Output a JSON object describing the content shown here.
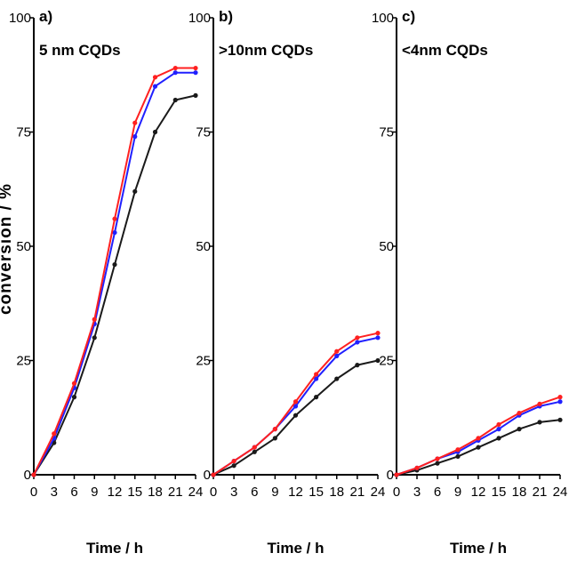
{
  "figure": {
    "ylabel": "conversion / %"
  },
  "series_colors": [
    "#ff2020",
    "#2020ff",
    "#1a1a1a"
  ],
  "chart_data": [
    {
      "type": "line",
      "panel": "a)",
      "title": "5 nm CQDs",
      "xlabel": "Time / h",
      "ylabel": "conversion / %",
      "xlim": [
        0,
        24
      ],
      "ylim": [
        0,
        100
      ],
      "x": [
        0,
        3,
        6,
        9,
        12,
        15,
        18,
        21,
        24
      ],
      "x_ticks": [
        "0",
        "3",
        "6",
        "9",
        "12",
        "15",
        "18",
        "21",
        "24"
      ],
      "y_ticks": [
        "0",
        "25",
        "50",
        "75",
        "100"
      ],
      "series": [
        {
          "color": "#ff2020",
          "values": [
            0,
            9,
            20,
            34,
            56,
            77,
            87,
            89,
            89
          ]
        },
        {
          "color": "#2020ff",
          "values": [
            0,
            8,
            19,
            33,
            53,
            74,
            85,
            88,
            88
          ]
        },
        {
          "color": "#1a1a1a",
          "values": [
            0,
            7,
            17,
            30,
            46,
            62,
            75,
            82,
            83
          ]
        }
      ]
    },
    {
      "type": "line",
      "panel": "b)",
      "title": ">10nm CQDs",
      "xlabel": "Time / h",
      "xlim": [
        0,
        24
      ],
      "ylim": [
        0,
        100
      ],
      "x": [
        0,
        3,
        6,
        9,
        12,
        15,
        18,
        21,
        24
      ],
      "x_ticks": [
        "0",
        "3",
        "6",
        "9",
        "12",
        "15",
        "18",
        "21",
        "24"
      ],
      "y_ticks": [
        "0",
        "25",
        "50",
        "75",
        "100"
      ],
      "series": [
        {
          "color": "#ff2020",
          "values": [
            0,
            3,
            6,
            10,
            16,
            22,
            27,
            30,
            31
          ]
        },
        {
          "color": "#2020ff",
          "values": [
            0,
            3,
            6,
            10,
            15,
            21,
            26,
            29,
            30
          ]
        },
        {
          "color": "#1a1a1a",
          "values": [
            0,
            2,
            5,
            8,
            13,
            17,
            21,
            24,
            25
          ]
        }
      ]
    },
    {
      "type": "line",
      "panel": "c)",
      "title": "<4nm CQDs",
      "xlabel": "Time / h",
      "xlim": [
        0,
        24
      ],
      "ylim": [
        0,
        100
      ],
      "x": [
        0,
        3,
        6,
        9,
        12,
        15,
        18,
        21,
        24
      ],
      "x_ticks": [
        "0",
        "3",
        "6",
        "9",
        "12",
        "15",
        "18",
        "21",
        "24"
      ],
      "y_ticks": [
        "0",
        "25",
        "50",
        "75",
        "100"
      ],
      "series": [
        {
          "color": "#ff2020",
          "values": [
            0,
            1.5,
            3.5,
            5.5,
            8,
            11,
            13.5,
            15.5,
            17
          ]
        },
        {
          "color": "#2020ff",
          "values": [
            0,
            1.5,
            3.5,
            5,
            7.5,
            10,
            13,
            15,
            16
          ]
        },
        {
          "color": "#1a1a1a",
          "values": [
            0,
            1,
            2.5,
            4,
            6,
            8,
            10,
            11.5,
            12
          ]
        }
      ]
    }
  ]
}
